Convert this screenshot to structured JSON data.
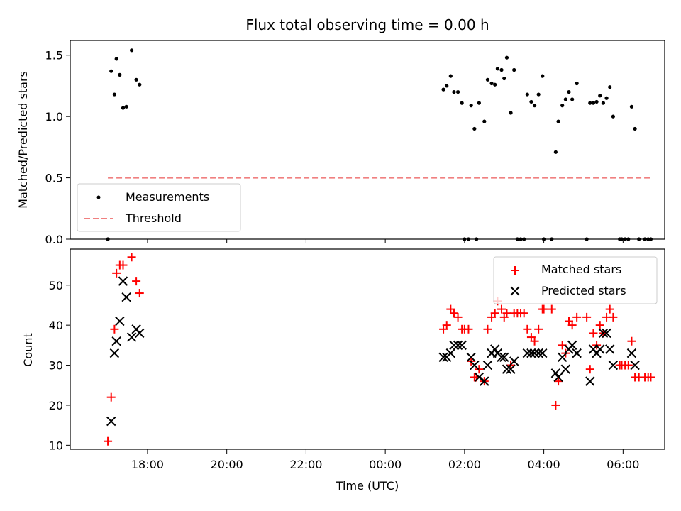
{
  "chart_data": [
    {
      "type": "scatter",
      "title": "Flux total observing time = 0.00 h",
      "xlabel": "",
      "ylabel": "Matched/Predicted stars",
      "ylim": [
        0,
        1.62
      ],
      "yticks": [
        "0.0",
        "0.5",
        "1.0",
        "1.5"
      ],
      "ytick_values": [
        0,
        0.5,
        1.0,
        1.5
      ],
      "grid": false,
      "legend_position": "bottom-left",
      "legend": [
        "Measurements",
        "Threshold"
      ],
      "series": [
        {
          "name": "Measurements",
          "marker": "dot",
          "color": "#000000",
          "points": [
            [
              "17:00",
              0.0
            ],
            [
              "17:05",
              1.37
            ],
            [
              "17:10",
              1.18
            ],
            [
              "17:13",
              1.47
            ],
            [
              "17:18",
              1.34
            ],
            [
              "17:23",
              1.07
            ],
            [
              "17:28",
              1.08
            ],
            [
              "17:36",
              1.54
            ],
            [
              "17:43",
              1.3
            ],
            [
              "17:48",
              1.26
            ],
            [
              "01:28",
              1.22
            ],
            [
              "01:33",
              1.25
            ],
            [
              "01:39",
              1.33
            ],
            [
              "01:44",
              1.2
            ],
            [
              "01:50",
              1.2
            ],
            [
              "01:56",
              1.11
            ],
            [
              "02:00",
              0.0
            ],
            [
              "02:06",
              0.0
            ],
            [
              "02:10",
              1.09
            ],
            [
              "02:15",
              0.9
            ],
            [
              "02:18",
              0.0
            ],
            [
              "02:22",
              1.11
            ],
            [
              "02:30",
              0.96
            ],
            [
              "02:35",
              1.3
            ],
            [
              "02:41",
              1.27
            ],
            [
              "02:46",
              1.26
            ],
            [
              "02:50",
              1.39
            ],
            [
              "02:56",
              1.38
            ],
            [
              "03:00",
              1.31
            ],
            [
              "03:04",
              1.48
            ],
            [
              "03:10",
              1.03
            ],
            [
              "03:15",
              1.38
            ],
            [
              "03:20",
              0.0
            ],
            [
              "03:25",
              0.0
            ],
            [
              "03:30",
              0.0
            ],
            [
              "03:35",
              1.18
            ],
            [
              "03:41",
              1.12
            ],
            [
              "03:46",
              1.09
            ],
            [
              "03:52",
              1.18
            ],
            [
              "03:58",
              1.33
            ],
            [
              "04:00",
              0.0
            ],
            [
              "04:12",
              0.0
            ],
            [
              "04:18",
              0.71
            ],
            [
              "04:22",
              0.96
            ],
            [
              "04:28",
              1.09
            ],
            [
              "04:33",
              1.14
            ],
            [
              "04:38",
              1.2
            ],
            [
              "04:43",
              1.14
            ],
            [
              "04:50",
              1.27
            ],
            [
              "05:05",
              0.0
            ],
            [
              "05:10",
              1.11
            ],
            [
              "05:15",
              1.11
            ],
            [
              "05:20",
              1.12
            ],
            [
              "05:25",
              1.17
            ],
            [
              "05:30",
              1.11
            ],
            [
              "05:35",
              1.15
            ],
            [
              "05:40",
              1.24
            ],
            [
              "05:45",
              1.0
            ],
            [
              "05:55",
              0.0
            ],
            [
              "05:58",
              0.0
            ],
            [
              "06:03",
              0.0
            ],
            [
              "06:08",
              0.0
            ],
            [
              "06:13",
              1.08
            ],
            [
              "06:18",
              0.9
            ],
            [
              "06:24",
              0.0
            ],
            [
              "06:33",
              0.0
            ],
            [
              "06:38",
              0.0
            ],
            [
              "06:42",
              0.0
            ]
          ]
        },
        {
          "name": "Threshold",
          "marker": "dashed-line",
          "color": "#f08080",
          "points": [
            [
              "17:00",
              0.5
            ],
            [
              "06:42",
              0.5
            ]
          ]
        }
      ]
    },
    {
      "type": "scatter",
      "title": "",
      "xlabel": "Time (UTC)",
      "ylabel": "Count",
      "ylim": [
        9,
        59
      ],
      "yticks": [
        "10",
        "20",
        "30",
        "40",
        "50"
      ],
      "ytick_values": [
        10,
        20,
        30,
        40,
        50
      ],
      "xticks": [
        "18:00",
        "20:00",
        "22:00",
        "00:00",
        "02:00",
        "04:00",
        "06:00"
      ],
      "grid": false,
      "legend_position": "top-right",
      "legend": [
        "Matched stars",
        "Predicted stars"
      ],
      "series": [
        {
          "name": "Matched stars",
          "marker": "plus",
          "color": "#ff0000",
          "points": [
            [
              "17:00",
              11
            ],
            [
              "17:05",
              22
            ],
            [
              "17:10",
              39
            ],
            [
              "17:13",
              53
            ],
            [
              "17:18",
              55
            ],
            [
              "17:23",
              55
            ],
            [
              "17:36",
              57
            ],
            [
              "17:43",
              51
            ],
            [
              "17:48",
              48
            ],
            [
              "01:28",
              39
            ],
            [
              "01:33",
              40
            ],
            [
              "01:39",
              44
            ],
            [
              "01:44",
              43
            ],
            [
              "01:50",
              42
            ],
            [
              "01:56",
              39
            ],
            [
              "02:00",
              39
            ],
            [
              "02:06",
              39
            ],
            [
              "02:10",
              31
            ],
            [
              "02:15",
              27
            ],
            [
              "02:18",
              27
            ],
            [
              "02:22",
              29
            ],
            [
              "02:30",
              26
            ],
            [
              "02:35",
              39
            ],
            [
              "02:41",
              42
            ],
            [
              "02:46",
              43
            ],
            [
              "02:50",
              46
            ],
            [
              "02:56",
              44
            ],
            [
              "03:00",
              42
            ],
            [
              "03:04",
              43
            ],
            [
              "03:10",
              30
            ],
            [
              "03:15",
              43
            ],
            [
              "03:20",
              43
            ],
            [
              "03:25",
              43
            ],
            [
              "03:30",
              43
            ],
            [
              "03:35",
              39
            ],
            [
              "03:41",
              37
            ],
            [
              "03:46",
              36
            ],
            [
              "03:52",
              39
            ],
            [
              "03:58",
              44
            ],
            [
              "04:00",
              44
            ],
            [
              "04:12",
              44
            ],
            [
              "04:18",
              20
            ],
            [
              "04:22",
              26
            ],
            [
              "04:28",
              35
            ],
            [
              "04:33",
              33
            ],
            [
              "04:38",
              41
            ],
            [
              "04:43",
              40
            ],
            [
              "04:50",
              42
            ],
            [
              "05:05",
              42
            ],
            [
              "05:10",
              29
            ],
            [
              "05:15",
              38
            ],
            [
              "05:20",
              35
            ],
            [
              "05:25",
              40
            ],
            [
              "05:30",
              38
            ],
            [
              "05:35",
              42
            ],
            [
              "05:40",
              44
            ],
            [
              "05:45",
              42
            ],
            [
              "05:55",
              30
            ],
            [
              "05:58",
              30
            ],
            [
              "06:03",
              30
            ],
            [
              "06:08",
              30
            ],
            [
              "06:13",
              36
            ],
            [
              "06:18",
              27
            ],
            [
              "06:24",
              27
            ],
            [
              "06:33",
              27
            ],
            [
              "06:38",
              27
            ],
            [
              "06:42",
              27
            ]
          ]
        },
        {
          "name": "Predicted stars",
          "marker": "x",
          "color": "#000000",
          "points": [
            [
              "17:05",
              16
            ],
            [
              "17:10",
              33
            ],
            [
              "17:13",
              36
            ],
            [
              "17:18",
              41
            ],
            [
              "17:23",
              51
            ],
            [
              "17:28",
              47
            ],
            [
              "17:36",
              37
            ],
            [
              "17:43",
              39
            ],
            [
              "17:48",
              38
            ],
            [
              "01:28",
              32
            ],
            [
              "01:33",
              32
            ],
            [
              "01:39",
              33
            ],
            [
              "01:44",
              35
            ],
            [
              "01:50",
              35
            ],
            [
              "01:56",
              35
            ],
            [
              "02:10",
              32
            ],
            [
              "02:15",
              30
            ],
            [
              "02:22",
              27
            ],
            [
              "02:30",
              26
            ],
            [
              "02:35",
              30
            ],
            [
              "02:41",
              33
            ],
            [
              "02:46",
              34
            ],
            [
              "02:50",
              33
            ],
            [
              "02:56",
              32
            ],
            [
              "03:00",
              32
            ],
            [
              "03:04",
              29
            ],
            [
              "03:10",
              29
            ],
            [
              "03:15",
              31
            ],
            [
              "03:35",
              33
            ],
            [
              "03:41",
              33
            ],
            [
              "03:46",
              33
            ],
            [
              "03:52",
              33
            ],
            [
              "03:58",
              33
            ],
            [
              "04:18",
              28
            ],
            [
              "04:22",
              27
            ],
            [
              "04:28",
              32
            ],
            [
              "04:33",
              29
            ],
            [
              "04:38",
              34
            ],
            [
              "04:43",
              35
            ],
            [
              "04:50",
              33
            ],
            [
              "05:10",
              26
            ],
            [
              "05:15",
              34
            ],
            [
              "05:20",
              33
            ],
            [
              "05:25",
              34
            ],
            [
              "05:30",
              38
            ],
            [
              "05:35",
              38
            ],
            [
              "05:40",
              34
            ],
            [
              "05:45",
              30
            ],
            [
              "06:13",
              33
            ],
            [
              "06:18",
              30
            ]
          ]
        }
      ]
    }
  ]
}
